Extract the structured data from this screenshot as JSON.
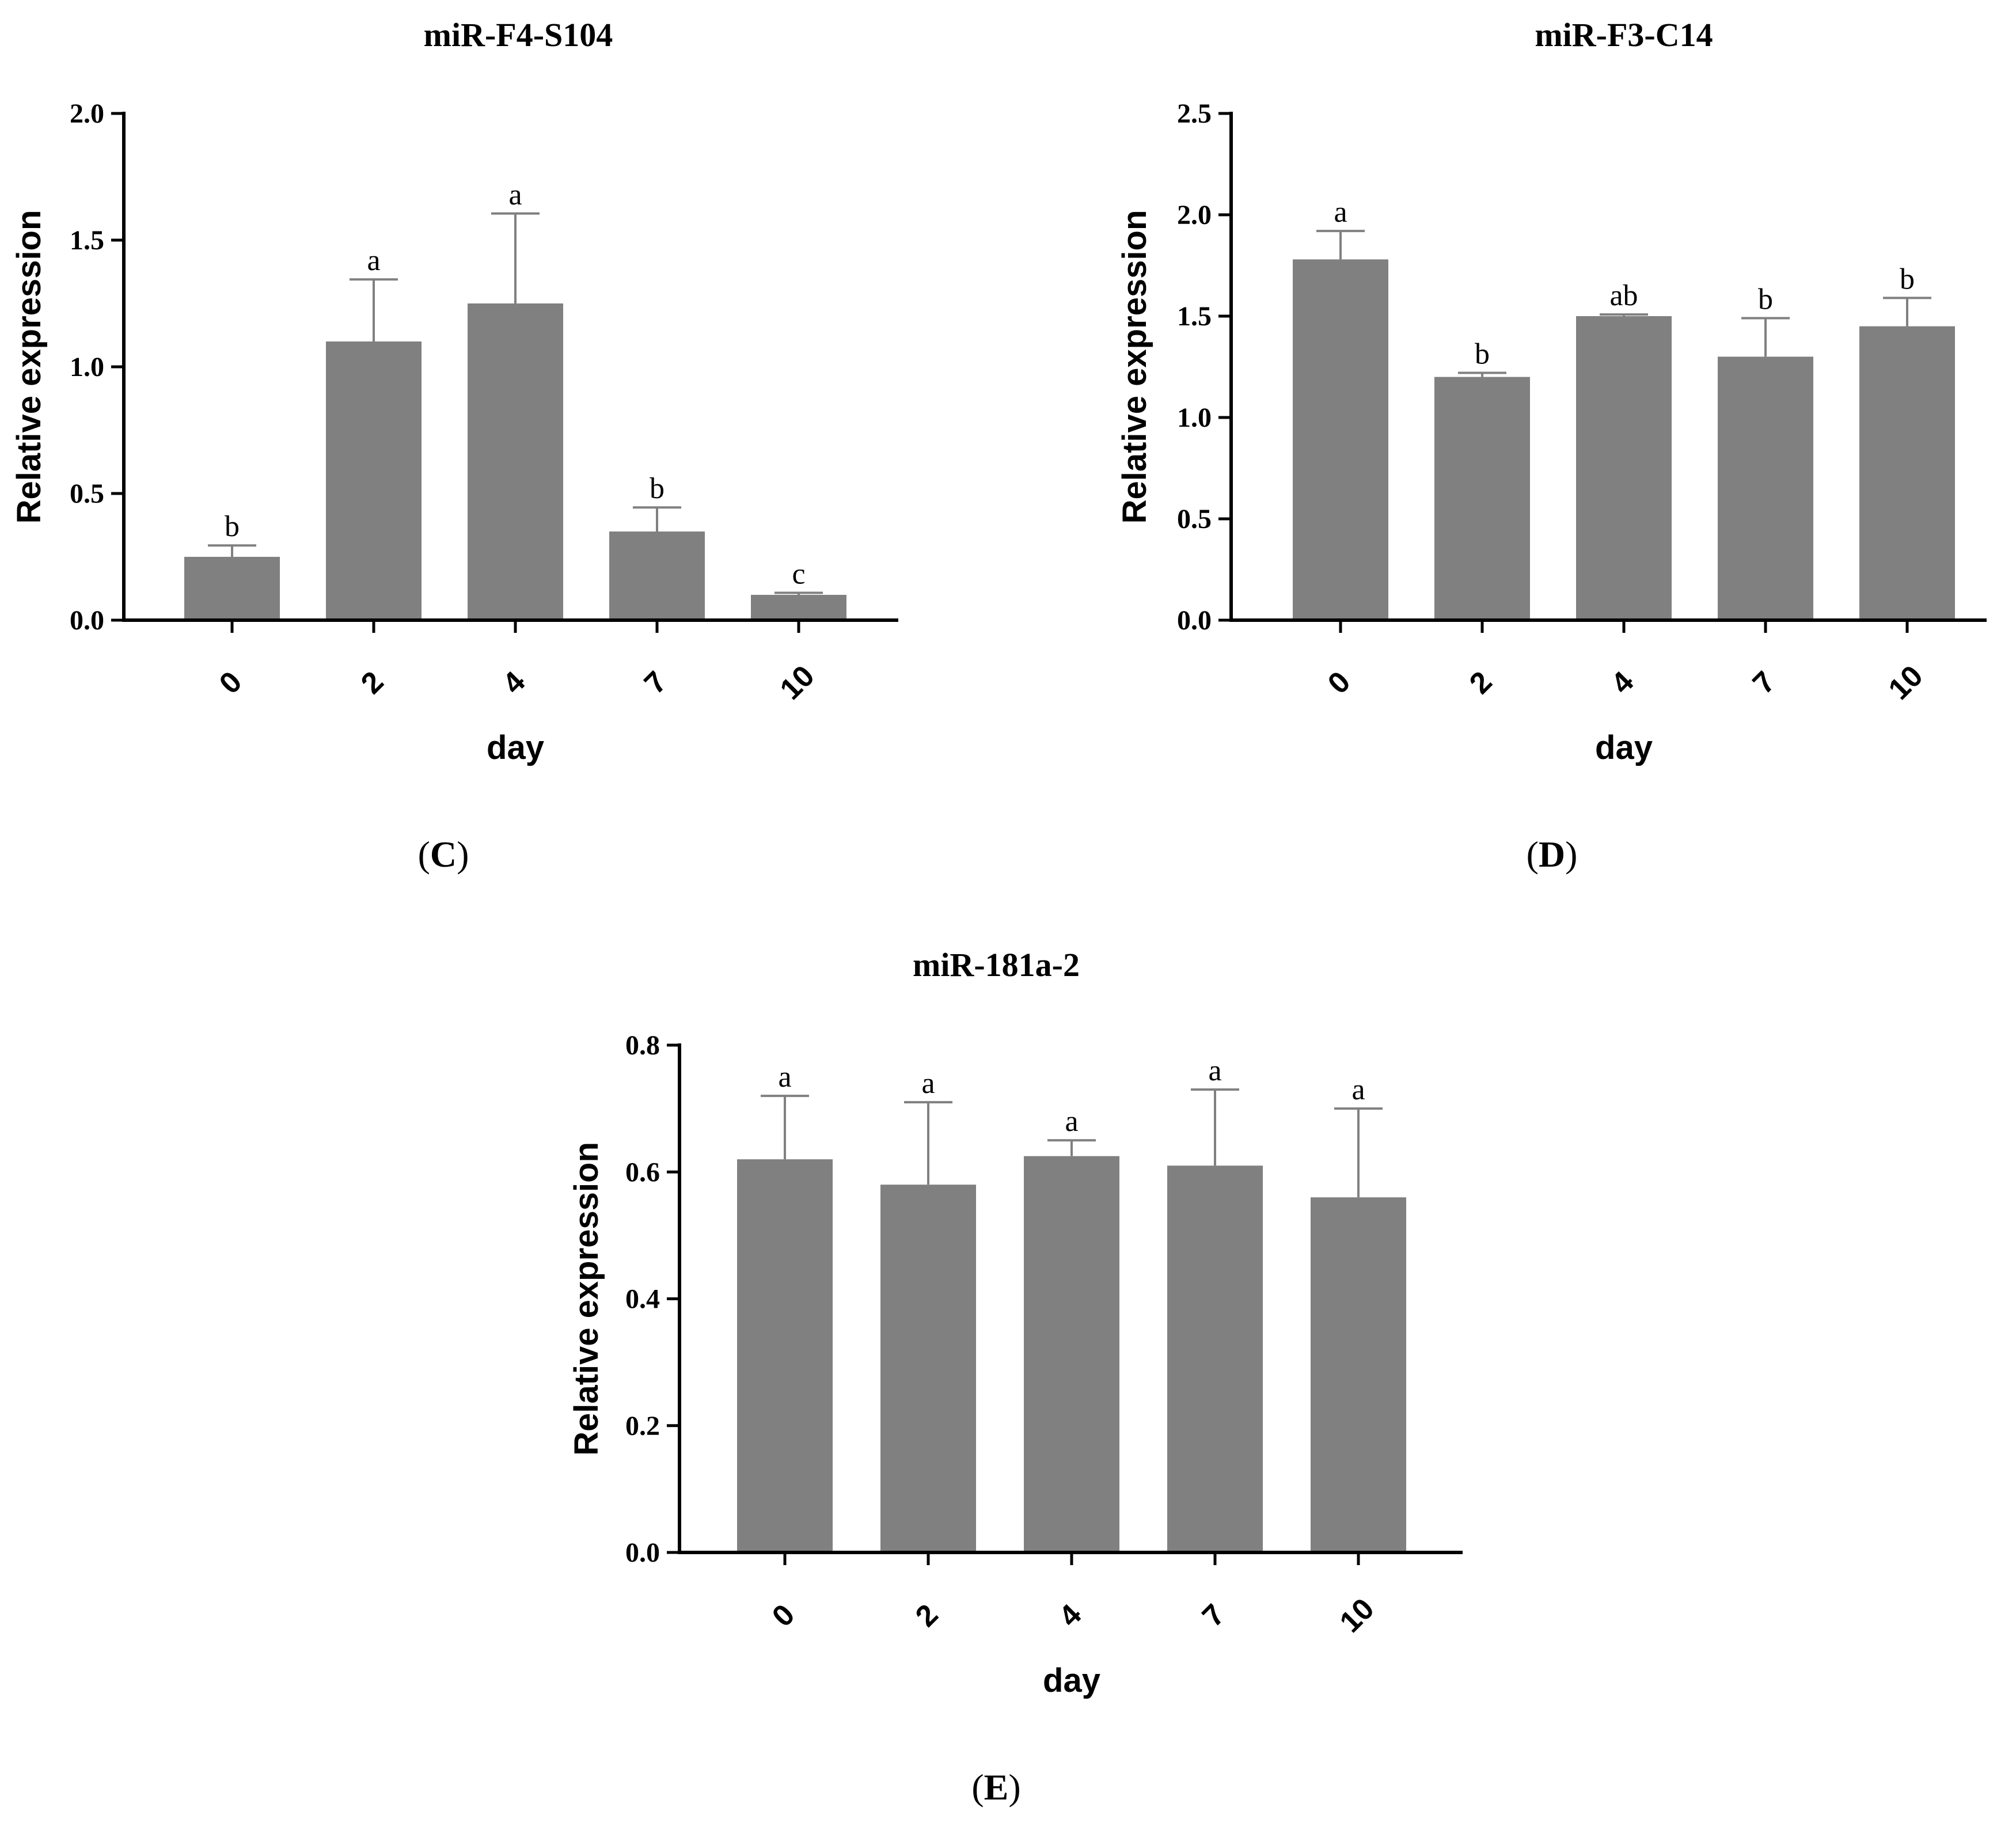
{
  "chart_data": [
    {
      "type": "bar",
      "title": "miR-F4-S104",
      "panel_label": "C",
      "xlabel": "day",
      "ylabel": "Relative expression",
      "categories": [
        "0",
        "2",
        "4",
        "7",
        "10"
      ],
      "values": [
        0.25,
        1.1,
        1.25,
        0.35,
        0.1
      ],
      "error_upper": [
        0.045,
        0.245,
        0.355,
        0.095,
        0.008
      ],
      "significance": [
        "b",
        "a",
        "a",
        "b",
        "c"
      ],
      "ylim": [
        0,
        2.0
      ],
      "yticks": [
        "0.0",
        "0.5",
        "1.0",
        "1.5",
        "2.0"
      ],
      "bar_color": "#808080"
    },
    {
      "type": "bar",
      "title": "miR-F3-C14",
      "panel_label": "D",
      "xlabel": "day",
      "ylabel": "Relative expression",
      "categories": [
        "0",
        "2",
        "4",
        "7",
        "10"
      ],
      "values": [
        1.78,
        1.2,
        1.5,
        1.3,
        1.45
      ],
      "error_upper": [
        0.14,
        0.02,
        0.008,
        0.19,
        0.14
      ],
      "significance": [
        "a",
        "b",
        "ab",
        "b",
        "b"
      ],
      "ylim": [
        0,
        2.5
      ],
      "yticks": [
        "0.0",
        "0.5",
        "1.0",
        "1.5",
        "2.0",
        "2.5"
      ],
      "bar_color": "#808080"
    },
    {
      "type": "bar",
      "title": "miR-181a-2",
      "panel_label": "E",
      "xlabel": "day",
      "ylabel": "Relative expression",
      "categories": [
        "0",
        "2",
        "4",
        "7",
        "10"
      ],
      "values": [
        0.62,
        0.58,
        0.625,
        0.61,
        0.56
      ],
      "error_upper": [
        0.1,
        0.13,
        0.025,
        0.12,
        0.14
      ],
      "significance": [
        "a",
        "a",
        "a",
        "a",
        "a"
      ],
      "ylim": [
        0,
        0.8
      ],
      "yticks": [
        "0.0",
        "0.2",
        "0.4",
        "0.6",
        "0.8"
      ],
      "bar_color": "#808080"
    }
  ]
}
